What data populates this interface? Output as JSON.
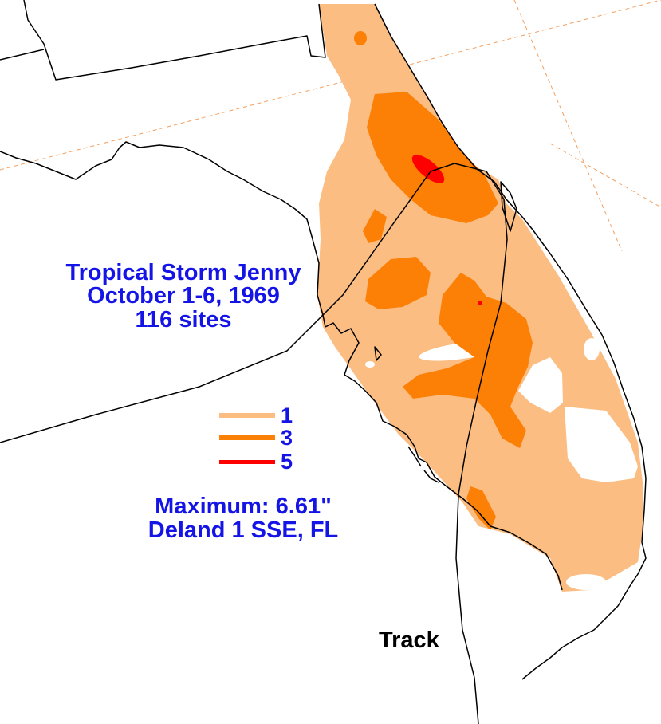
{
  "title": {
    "storm_name": "Tropical Storm Jenny",
    "dates": "October 1-6, 1969",
    "sites": "116 sites"
  },
  "legend": {
    "items": [
      {
        "label": "1",
        "color": "#fbbd82"
      },
      {
        "label": "3",
        "color": "#fd8006"
      },
      {
        "label": "5",
        "color": "#ff0000"
      }
    ]
  },
  "maximum": {
    "value_text": "Maximum:  6.61\"",
    "location": "Deland 1 SSE, FL"
  },
  "track_label": "Track",
  "colors": {
    "text_blue": "#1414e6",
    "text_black": "#000000",
    "coastline": "#000000",
    "graticule": "#f3a060"
  }
}
